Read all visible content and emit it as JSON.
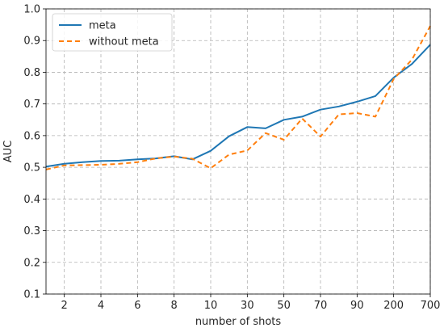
{
  "chart_data": {
    "type": "line",
    "xlabel": "number of shots",
    "ylabel": "AUC",
    "x_tick_labels": [
      "2",
      "4",
      "6",
      "8",
      "10",
      "30",
      "50",
      "70",
      "90",
      "200",
      "700"
    ],
    "x_tick_positions": [
      2,
      4,
      6,
      8,
      10,
      12,
      14,
      16,
      18,
      20,
      22
    ],
    "xlim": [
      1,
      22
    ],
    "ylim": [
      0.1,
      1.0
    ],
    "y_ticks": [
      0.1,
      0.2,
      0.3,
      0.4,
      0.5,
      0.6,
      0.7,
      0.8,
      0.9,
      1.0
    ],
    "y_tick_labels": [
      "0.1",
      "0.2",
      "0.3",
      "0.4",
      "0.5",
      "0.6",
      "0.7",
      "0.8",
      "0.9",
      "1.0"
    ],
    "grid": true,
    "legend_position": "top-left",
    "series": [
      {
        "name": "meta",
        "color": "#1f77b4",
        "style": "solid",
        "x": [
          1,
          2,
          3,
          4,
          5,
          6,
          7,
          8,
          9,
          10,
          11,
          12,
          13,
          14,
          15,
          16,
          17,
          18,
          19,
          20,
          21,
          22
        ],
        "values": [
          0.502,
          0.511,
          0.516,
          0.52,
          0.521,
          0.525,
          0.528,
          0.535,
          0.525,
          0.552,
          0.598,
          0.627,
          0.623,
          0.65,
          0.66,
          0.682,
          0.692,
          0.707,
          0.725,
          0.783,
          0.826,
          0.887
        ]
      },
      {
        "name": "without meta",
        "color": "#ff7f0e",
        "style": "dashed",
        "x": [
          1,
          2,
          3,
          4,
          5,
          6,
          7,
          8,
          9,
          10,
          11,
          12,
          13,
          14,
          15,
          16,
          17,
          18,
          19,
          20,
          21,
          22
        ],
        "values": [
          0.493,
          0.506,
          0.507,
          0.508,
          0.511,
          0.516,
          0.528,
          0.534,
          0.527,
          0.497,
          0.54,
          0.553,
          0.608,
          0.587,
          0.654,
          0.597,
          0.667,
          0.671,
          0.66,
          0.779,
          0.84,
          0.946
        ]
      }
    ]
  }
}
